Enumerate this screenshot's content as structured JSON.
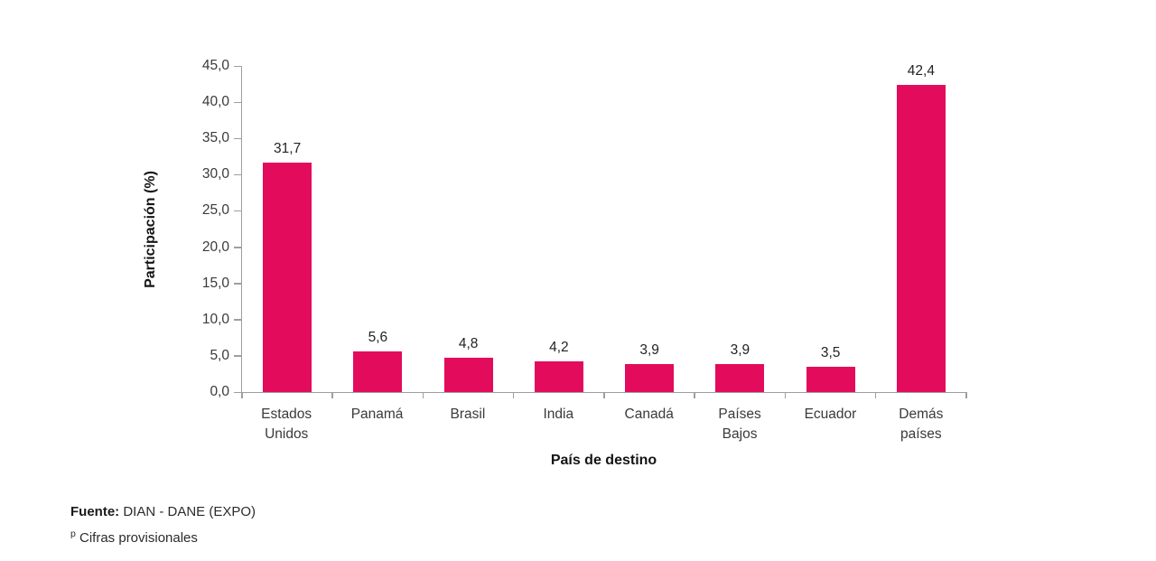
{
  "colors": {
    "bar": "#E30B5C",
    "axis": "#9e9e9e",
    "text": "#3a3a3a",
    "title": "#141414"
  },
  "chart_data": {
    "type": "bar",
    "title": "",
    "categories": [
      "Estados\nUnidos",
      "Panamá",
      "Brasil",
      "India",
      "Canadá",
      "Países\nBajos",
      "Ecuador",
      "Demás\npaíses"
    ],
    "values": [
      31.7,
      5.6,
      4.8,
      4.2,
      3.9,
      3.9,
      3.5,
      42.4
    ],
    "value_labels": [
      "31,7",
      "5,6",
      "4,8",
      "4,2",
      "3,9",
      "3,9",
      "3,5",
      "42,4"
    ],
    "xlabel": "País de destino",
    "ylabel": "Participación (%)",
    "ylim": [
      0,
      45
    ],
    "ytick_step": 5,
    "ytick_labels": [
      "0,0",
      "5,0",
      "10,0",
      "15,0",
      "20,0",
      "25,0",
      "30,0",
      "35,0",
      "40,0",
      "45,0"
    ],
    "grid": false,
    "legend": null
  },
  "footer": {
    "source_label": "Fuente:",
    "source_text": " DIAN - DANE (EXPO)",
    "note_sup": "p",
    "note_text": " Cifras provisionales"
  }
}
